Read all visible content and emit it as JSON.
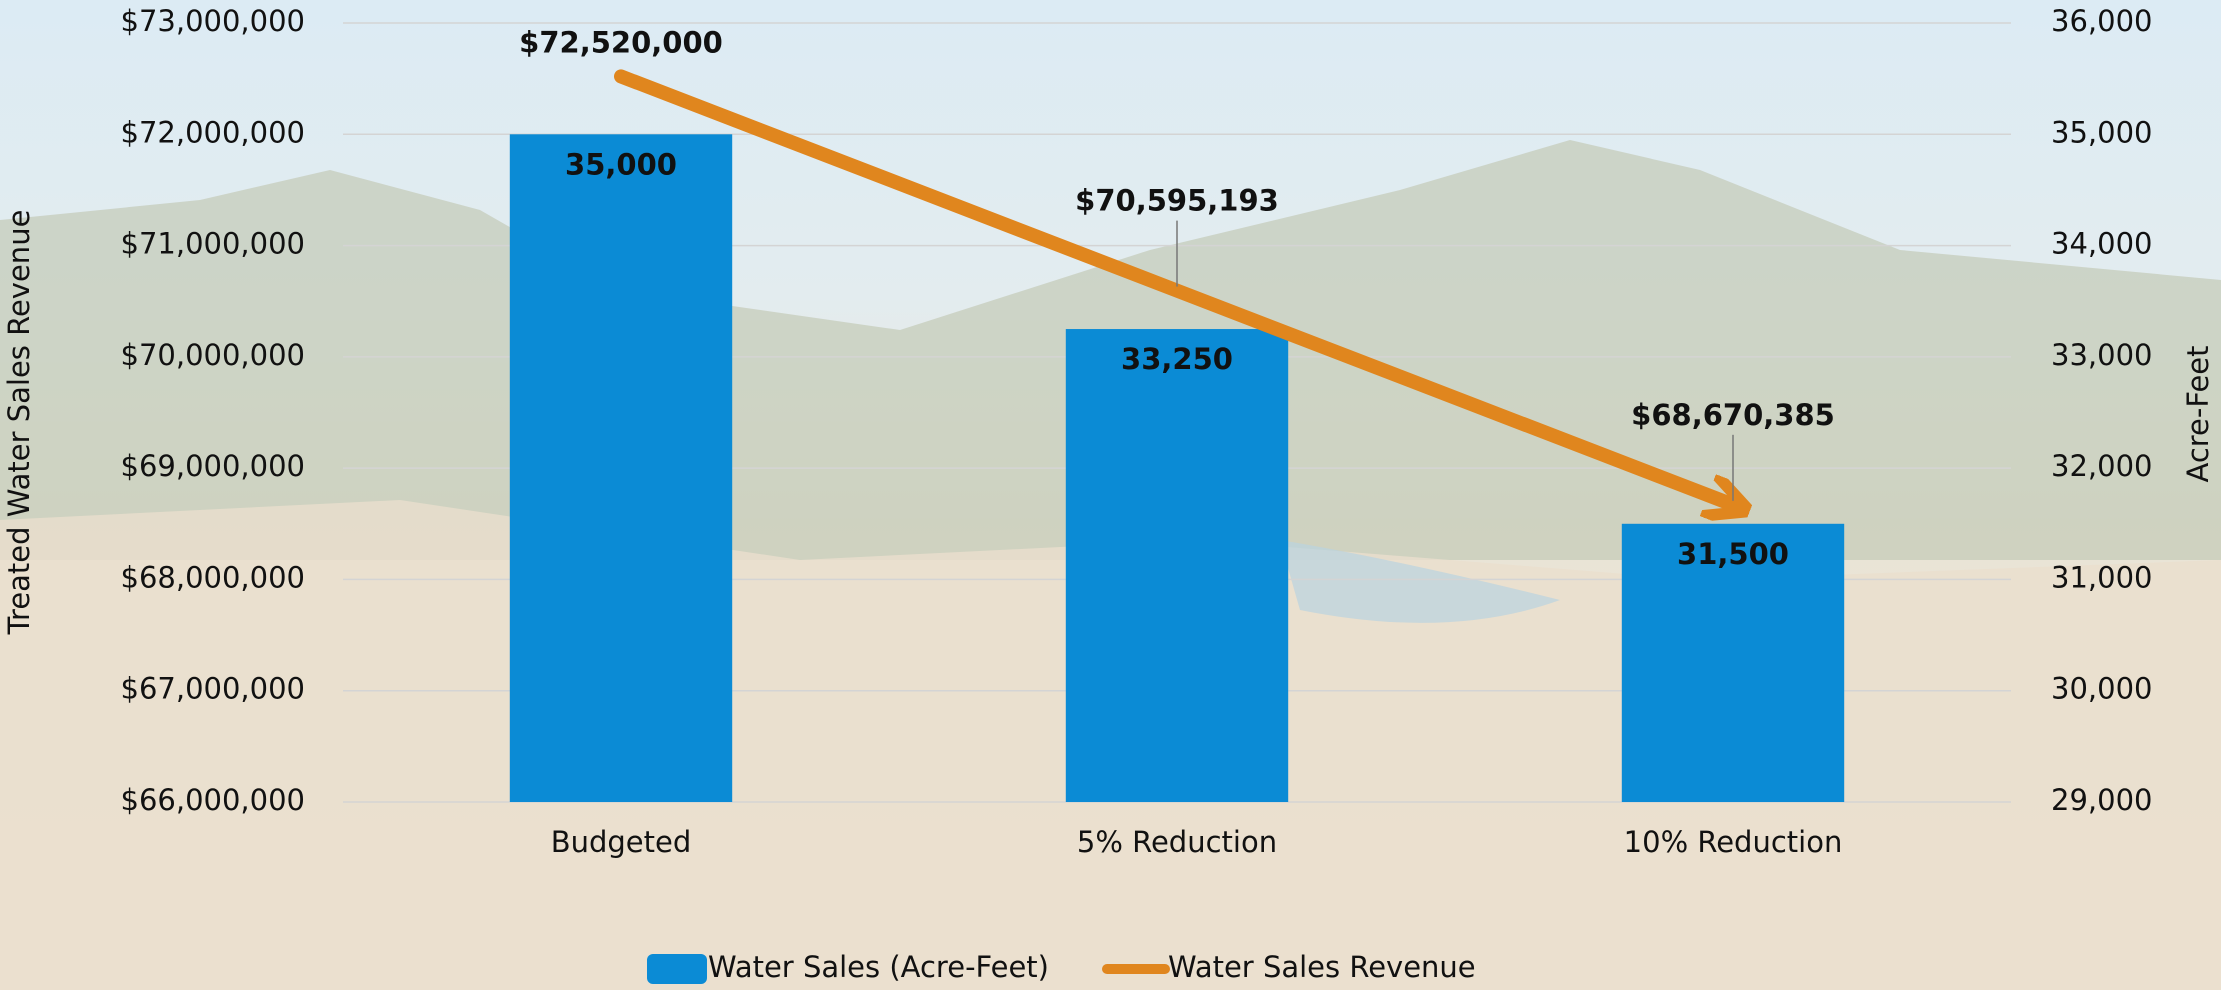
{
  "chart_data": {
    "type": "bar",
    "categories": [
      "Budgeted",
      "5% Reduction",
      "10% Reduction"
    ],
    "ylabel": "Treated Water Sales Revenue",
    "y2label": "Acre-Feet",
    "ylim": [
      66000000,
      73000000
    ],
    "yticks": [
      {
        "value": 66000000,
        "label": "$66,000,000"
      },
      {
        "value": 67000000,
        "label": "$67,000,000"
      },
      {
        "value": 68000000,
        "label": "$68,000,000"
      },
      {
        "value": 69000000,
        "label": "$69,000,000"
      },
      {
        "value": 70000000,
        "label": "$70,000,000"
      },
      {
        "value": 71000000,
        "label": "$71,000,000"
      },
      {
        "value": 72000000,
        "label": "$72,000,000"
      },
      {
        "value": 73000000,
        "label": "$73,000,000"
      }
    ],
    "y2lim": [
      29000,
      36000
    ],
    "y2ticks": [
      {
        "value": 29000,
        "label": "29,000"
      },
      {
        "value": 30000,
        "label": "30,000"
      },
      {
        "value": 31000,
        "label": "31,000"
      },
      {
        "value": 32000,
        "label": "32,000"
      },
      {
        "value": 33000,
        "label": "33,000"
      },
      {
        "value": 34000,
        "label": "34,000"
      },
      {
        "value": 35000,
        "label": "35,000"
      },
      {
        "value": 36000,
        "label": "36,000"
      }
    ],
    "grid": true,
    "legend": "bottom",
    "series": [
      {
        "name": "Water Sales (Acre-Feet)",
        "type": "bar",
        "axis": "y2",
        "color": "#0b8bd5",
        "values": [
          35000,
          33250,
          31500
        ],
        "value_labels": [
          "35,000",
          "33,250",
          "31,500"
        ]
      },
      {
        "name": "Water Sales Revenue",
        "type": "line",
        "color": "#e0861e",
        "values": [
          72520000,
          70595193,
          68670385
        ],
        "value_labels": [
          "$72,520,000",
          "$70,595,193",
          "$68,670,385"
        ]
      }
    ]
  }
}
